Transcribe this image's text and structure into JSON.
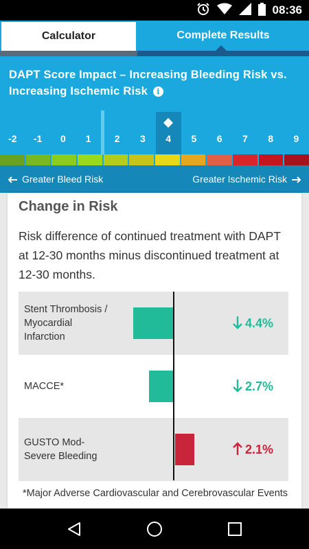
{
  "status_bar": {
    "time": "08:36",
    "icons": [
      "alarm-icon",
      "wifi-icon",
      "signal-icon",
      "battery-icon"
    ]
  },
  "tabs": [
    {
      "label": "Calculator",
      "active": false
    },
    {
      "label": "Complete Results",
      "active": true
    }
  ],
  "header": {
    "title": "DAPT Score Impact – Increasing Bleeding Risk vs. Increasing Ischemic Risk",
    "info_icon": "info-icon"
  },
  "scale": {
    "scores": [
      "-2",
      "-1",
      "0",
      "1",
      "2",
      "3",
      "4",
      "5",
      "6",
      "7",
      "8",
      "9"
    ],
    "selected": "4",
    "colors": [
      "#6aa121",
      "#7ab821",
      "#8ccc1c",
      "#9bd91d",
      "#b4cc1c",
      "#c4c41c",
      "#e8d81a",
      "#e5a71f",
      "#e06047",
      "#d8262b",
      "#c4171d",
      "#a4141a"
    ]
  },
  "direction": {
    "left_label": "Greater Bleed Risk",
    "right_label": "Greater Ischemic Risk"
  },
  "card": {
    "title": "Change in Risk",
    "description": "Risk difference of continued treatment with DAPT at 12-30 months minus discontinued treatment at 12-30 months.",
    "rows": [
      {
        "label": "Stent Thrombosis / Myocardial Infarction",
        "value": "4.4%",
        "direction": "down",
        "magnitude": 4.4,
        "color": "#22bb99"
      },
      {
        "label": "MACCE*",
        "value": "2.7%",
        "direction": "down",
        "magnitude": 2.7,
        "color": "#22bb99"
      },
      {
        "label": "GUSTO Mod-Severe Bleeding",
        "value": "2.1%",
        "direction": "up",
        "magnitude": 2.1,
        "color": "#c8243a"
      }
    ],
    "footnote": "*Major Adverse Cardiovascular and Cerebrovascular Events"
  },
  "navigation": {
    "buttons": [
      "back-icon",
      "home-icon",
      "recents-icon"
    ]
  }
}
